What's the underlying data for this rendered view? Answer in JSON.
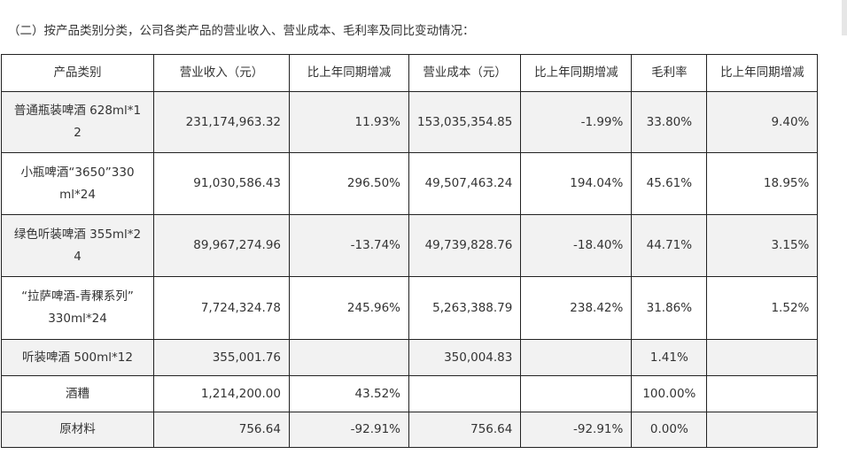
{
  "section_title": "（二）按产品类别分类，公司各类产品的营业收入、营业成本、毛利率及同比变动情况：",
  "table": {
    "headers": [
      "产品类别",
      "营业收入（元）",
      "比上年同期增减",
      "营业成本（元）",
      "比上年同期增减",
      "毛利率",
      "比上年同期增减"
    ],
    "rows": [
      {
        "name_lines": [
          "普通瓶装啤酒 628ml*1",
          "2"
        ],
        "revenue": "231,174,963.32",
        "revenue_change": "11.93%",
        "cost": "153,035,354.85",
        "cost_change": "-1.99%",
        "margin": "33.80%",
        "margin_change": "9.40%"
      },
      {
        "name_lines": [
          "小瓶啤酒“3650”330",
          "ml*24"
        ],
        "revenue": "91,030,586.43",
        "revenue_change": "296.50%",
        "cost": "49,507,463.24",
        "cost_change": "194.04%",
        "margin": "45.61%",
        "margin_change": "18.95%"
      },
      {
        "name_lines": [
          "绿色听装啤酒 355ml*2",
          "4"
        ],
        "revenue": "89,967,274.96",
        "revenue_change": "-13.74%",
        "cost": "49,739,828.76",
        "cost_change": "-18.40%",
        "margin": "44.71%",
        "margin_change": "3.15%"
      },
      {
        "name_lines": [
          "“拉萨啤酒-青稞系列”",
          "330ml*24"
        ],
        "revenue": "7,724,324.78",
        "revenue_change": "245.96%",
        "cost": "5,263,388.79",
        "cost_change": "238.42%",
        "margin": "31.86%",
        "margin_change": "1.52%"
      },
      {
        "name_lines": [
          "听装啤酒 500ml*12"
        ],
        "revenue": "355,001.76",
        "revenue_change": "",
        "cost": "350,004.83",
        "cost_change": "",
        "margin": "1.41%",
        "margin_change": ""
      },
      {
        "name_lines": [
          "酒糟"
        ],
        "revenue": "1,214,200.00",
        "revenue_change": "43.52%",
        "cost": "",
        "cost_change": "",
        "margin": "100.00%",
        "margin_change": ""
      },
      {
        "name_lines": [
          "原材料"
        ],
        "revenue": "756.64",
        "revenue_change": "-92.91%",
        "cost": "756.64",
        "cost_change": "-92.91%",
        "margin": "0.00%",
        "margin_change": ""
      }
    ]
  }
}
